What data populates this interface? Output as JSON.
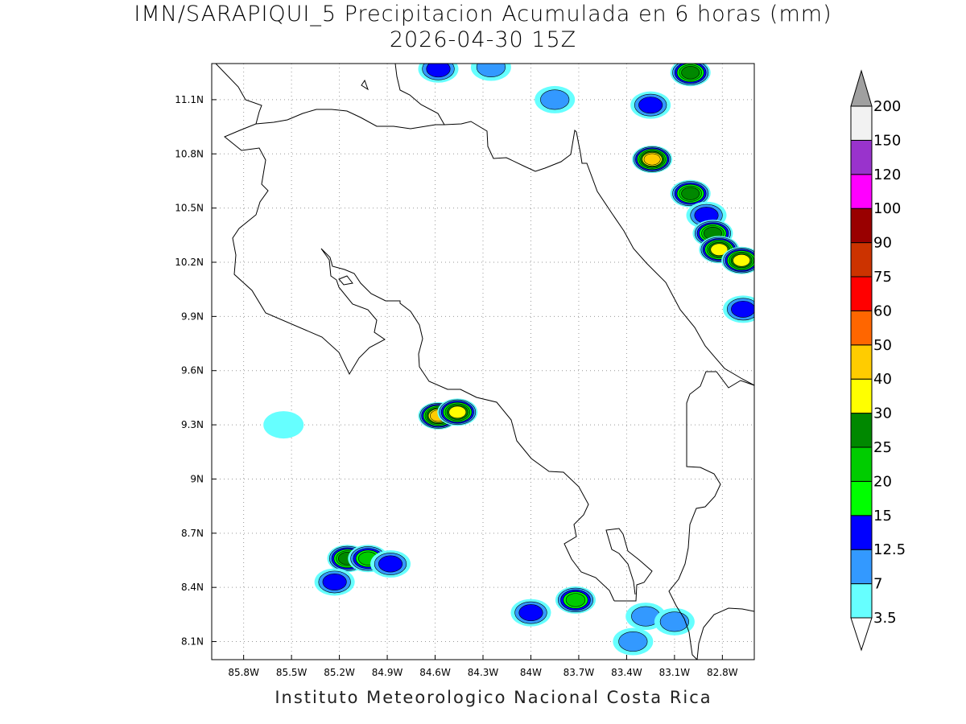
{
  "title": "IMN/SARAPIQUI_5 Precipitacion Acumulada en 6 horas (mm)",
  "subtitle": "2026-04-30 15Z",
  "footer": "Instituto Meteorologico Nacional Costa Rica",
  "map": {
    "lon_range": [
      -86.0,
      -82.6
    ],
    "lat_range": [
      8.0,
      11.3
    ],
    "x_ticks": [
      {
        "value": -85.8,
        "label": "85.8W"
      },
      {
        "value": -85.5,
        "label": "85.5W"
      },
      {
        "value": -85.2,
        "label": "85.2W"
      },
      {
        "value": -84.9,
        "label": "84.9W"
      },
      {
        "value": -84.6,
        "label": "84.6W"
      },
      {
        "value": -84.3,
        "label": "84.3W"
      },
      {
        "value": -84.0,
        "label": "84W"
      },
      {
        "value": -83.7,
        "label": "83.7W"
      },
      {
        "value": -83.4,
        "label": "83.4W"
      },
      {
        "value": -83.1,
        "label": "83.1W"
      },
      {
        "value": -82.8,
        "label": "82.8W"
      }
    ],
    "y_ticks": [
      {
        "value": 11.1,
        "label": "11.1N"
      },
      {
        "value": 10.8,
        "label": "10.8N"
      },
      {
        "value": 10.5,
        "label": "10.5N"
      },
      {
        "value": 10.2,
        "label": "10.2N"
      },
      {
        "value": 9.9,
        "label": "9.9N"
      },
      {
        "value": 9.6,
        "label": "9.6N"
      },
      {
        "value": 9.3,
        "label": "9.3N"
      },
      {
        "value": 9.0,
        "label": "9N"
      },
      {
        "value": 8.7,
        "label": "8.7N"
      },
      {
        "value": 8.4,
        "label": "8.4N"
      },
      {
        "value": 8.1,
        "label": "8.1N"
      }
    ],
    "grid": true
  },
  "colorbar": {
    "levels": [
      {
        "label": "3.5",
        "color": "#66ffff"
      },
      {
        "label": "7",
        "color": "#3399ff"
      },
      {
        "label": "12.5",
        "color": "#0000ff"
      },
      {
        "label": "15",
        "color": "#00ff00"
      },
      {
        "label": "20",
        "color": "#00cc00"
      },
      {
        "label": "25",
        "color": "#008800"
      },
      {
        "label": "30",
        "color": "#ffff00"
      },
      {
        "label": "40",
        "color": "#ffcc00"
      },
      {
        "label": "50",
        "color": "#ff6600"
      },
      {
        "label": "60",
        "color": "#ff0000"
      },
      {
        "label": "75",
        "color": "#cc3300"
      },
      {
        "label": "90",
        "color": "#990000"
      },
      {
        "label": "100",
        "color": "#ff00ff"
      },
      {
        "label": "120",
        "color": "#9933cc"
      },
      {
        "label": "150",
        "color": "#f2f2f2"
      },
      {
        "label": "200",
        "color": "#a0a0a0"
      }
    ]
  },
  "precip_cells": [
    {
      "lon": -84.58,
      "lat": 11.27,
      "max": 12.5
    },
    {
      "lon": -84.25,
      "lat": 11.28,
      "max": 7
    },
    {
      "lon": -83.85,
      "lat": 11.1,
      "max": 7
    },
    {
      "lon": -83.25,
      "lat": 11.07,
      "max": 12.5
    },
    {
      "lon": -83.0,
      "lat": 11.25,
      "max": 25
    },
    {
      "lon": -83.24,
      "lat": 10.77,
      "max": 40
    },
    {
      "lon": -83.0,
      "lat": 10.58,
      "max": 25
    },
    {
      "lon": -82.9,
      "lat": 10.46,
      "max": 12.5
    },
    {
      "lon": -82.86,
      "lat": 10.36,
      "max": 25
    },
    {
      "lon": -82.82,
      "lat": 10.27,
      "max": 30
    },
    {
      "lon": -82.68,
      "lat": 10.21,
      "max": 30
    },
    {
      "lon": -82.67,
      "lat": 9.94,
      "max": 12.5
    },
    {
      "lon": -84.58,
      "lat": 9.35,
      "max": 40
    },
    {
      "lon": -84.46,
      "lat": 9.37,
      "max": 30
    },
    {
      "lon": -85.15,
      "lat": 8.56,
      "max": 25
    },
    {
      "lon": -85.02,
      "lat": 8.56,
      "max": 20
    },
    {
      "lon": -84.88,
      "lat": 8.53,
      "max": 12.5
    },
    {
      "lon": -85.23,
      "lat": 8.43,
      "max": 12.5
    },
    {
      "lon": -84.0,
      "lat": 8.26,
      "max": 12.5
    },
    {
      "lon": -83.72,
      "lat": 8.33,
      "max": 20
    },
    {
      "lon": -83.28,
      "lat": 8.24,
      "max": 7
    },
    {
      "lon": -83.1,
      "lat": 8.21,
      "max": 7
    },
    {
      "lon": -83.36,
      "lat": 8.1,
      "max": 7
    },
    {
      "lon": -85.55,
      "lat": 9.3,
      "max": 3.5
    }
  ]
}
